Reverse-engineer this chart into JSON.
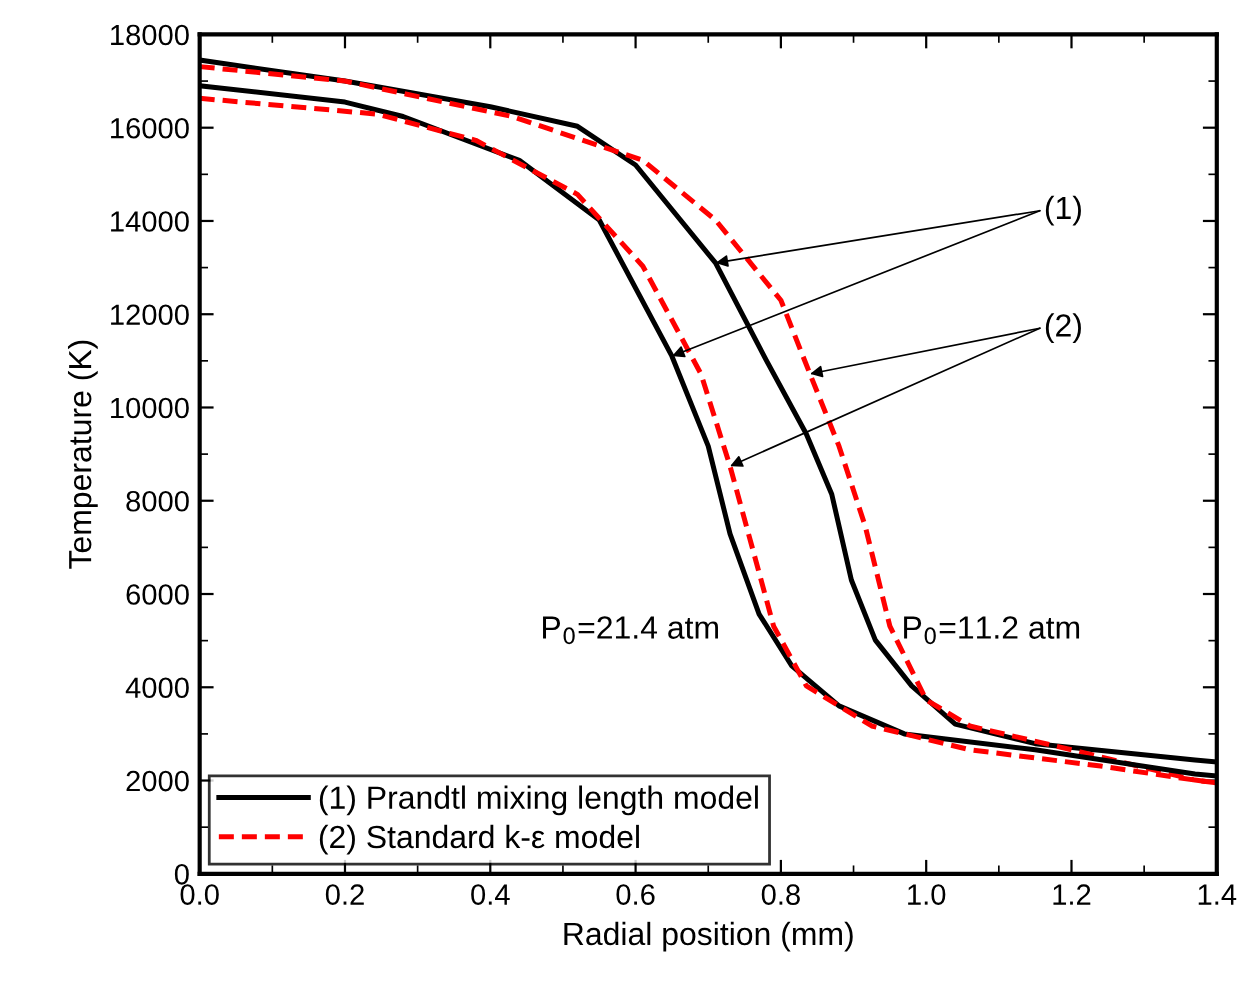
{
  "chart_data": {
    "type": "line",
    "xlabel": "Radial position (mm)",
    "ylabel": "Temperature (K)",
    "xlim": [
      0,
      1.4
    ],
    "ylim": [
      0,
      18000
    ],
    "xticks": [
      {
        "value": 0,
        "label": "0.0"
      },
      {
        "value": 0.2,
        "label": "0.2"
      },
      {
        "value": 0.4,
        "label": "0.4"
      },
      {
        "value": 0.6,
        "label": "0.6"
      },
      {
        "value": 0.8,
        "label": "0.8"
      },
      {
        "value": 1.0,
        "label": "1.0"
      },
      {
        "value": 1.2,
        "label": "1.2"
      },
      {
        "value": 1.4,
        "label": "1.4"
      }
    ],
    "yticks": [
      0,
      2000,
      4000,
      6000,
      8000,
      10000,
      12000,
      14000,
      16000,
      18000
    ],
    "grid": false,
    "legend": "bottom left",
    "marker": "none",
    "series": [
      {
        "name": "(1) Prandtl mixing length model",
        "color": "#000000",
        "line_style": "solid",
        "x": [
          0,
          0.2,
          0.4,
          0.52,
          0.6,
          0.71,
          0.78,
          0.835,
          0.87,
          0.897,
          0.93,
          0.98,
          1.04,
          1.15,
          1.37,
          1.4
        ],
        "values": [
          17450,
          17000,
          16450,
          16030,
          15200,
          13100,
          11010,
          9430,
          8140,
          6300,
          5010,
          4030,
          3210,
          2790,
          2440,
          2400
        ]
      },
      {
        "name": "(2) Standard k-ε model",
        "color": "#ff0000",
        "line_style": "dashed",
        "x": [
          0,
          0.2,
          0.43,
          0.61,
          0.71,
          0.8,
          0.84,
          0.88,
          0.916,
          0.95,
          1.0,
          1.06,
          1.2,
          1.37,
          1.4
        ],
        "values": [
          17310,
          17000,
          16240,
          15300,
          14020,
          12300,
          10720,
          9170,
          7460,
          5310,
          3730,
          3170,
          2660,
          2010,
          1950
        ]
      },
      {
        "color": "#000000",
        "line_style": "solid",
        "x": [
          0,
          0.2,
          0.28,
          0.44,
          0.55,
          0.65,
          0.7,
          0.73,
          0.77,
          0.815,
          0.88,
          0.97,
          1.15,
          1.37,
          1.4
        ],
        "values": [
          16900,
          16550,
          16240,
          15300,
          14020,
          11100,
          9170,
          7290,
          5570,
          4460,
          3600,
          3000,
          2660,
          2140,
          2100
        ]
      },
      {
        "color": "#ff0000",
        "line_style": "dashed",
        "x": [
          0,
          0.245,
          0.38,
          0.52,
          0.61,
          0.69,
          0.73,
          0.76,
          0.79,
          0.835,
          0.925,
          1.06,
          1.24,
          1.37,
          1.4
        ],
        "values": [
          16630,
          16290,
          15730,
          14570,
          13030,
          10720,
          8740,
          7030,
          5310,
          4030,
          3170,
          2660,
          2310,
          2010,
          1950
        ]
      }
    ],
    "annotations": [
      {
        "text": "(1)",
        "x": 0.71,
        "y": 13100
      },
      {
        "text": "(2)",
        "x": 0.84,
        "y": 10720
      },
      "P$_{0}$=21.4 atm",
      "P$_{0}$=11.2 atm"
    ]
  }
}
